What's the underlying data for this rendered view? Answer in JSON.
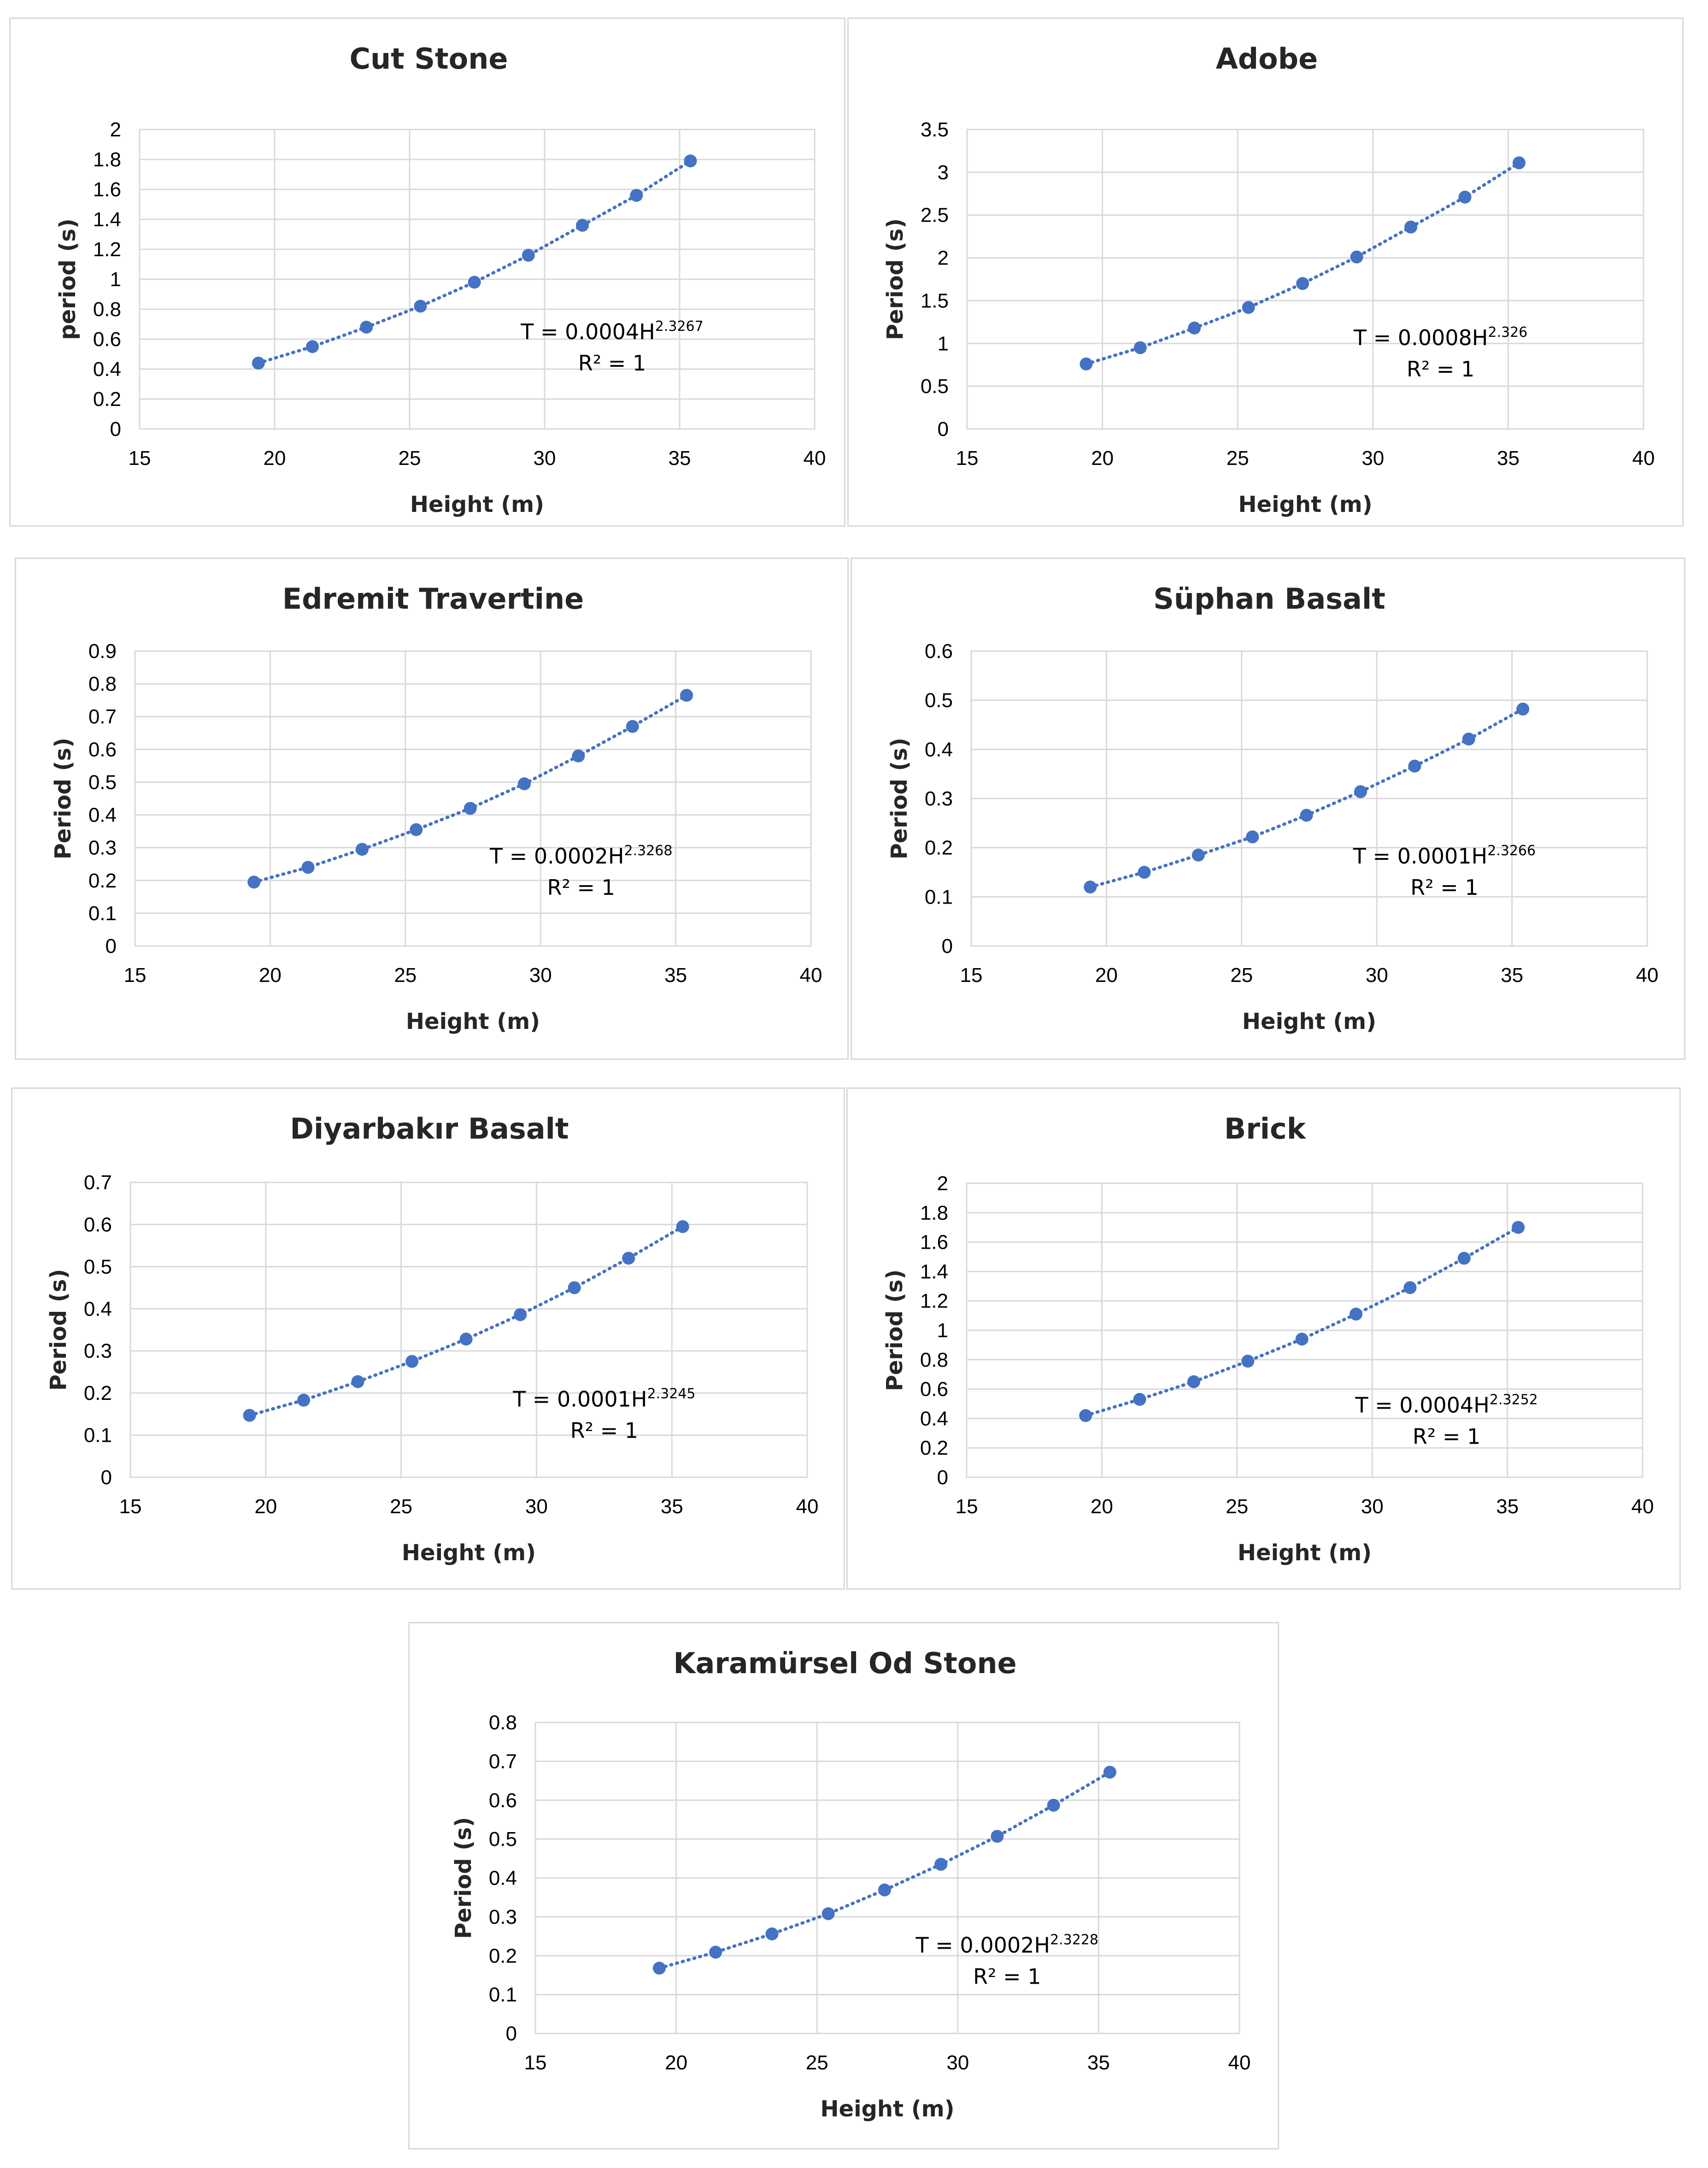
{
  "chart_data": [
    {
      "type": "scatter",
      "title": "Cut Stone",
      "xlabel": "Height (m)",
      "ylabel": "period (s)",
      "xlim": [
        15,
        40
      ],
      "xticks": [
        "15",
        "20",
        "25",
        "30",
        "35",
        "40"
      ],
      "ylim": [
        0,
        2
      ],
      "yticks": [
        "0",
        "0.2",
        "0.4",
        "0.6",
        "0.8",
        "1",
        "1.2",
        "1.4",
        "1.6",
        "1.8",
        "2"
      ],
      "trendline": "power, dotted",
      "series": [
        {
          "name": "period",
          "color": "#4472c4",
          "x": [
            19.4,
            21.4,
            23.4,
            25.4,
            27.4,
            29.4,
            31.4,
            33.4,
            35.4
          ],
          "y": [
            0.44,
            0.55,
            0.68,
            0.82,
            0.98,
            1.16,
            1.36,
            1.56,
            1.79
          ]
        }
      ],
      "equation": {
        "prefix": "T = 0.0004H",
        "exponent": "2.3267",
        "r2": "R² = 1"
      }
    },
    {
      "type": "scatter",
      "title": "Adobe",
      "xlabel": "Height (m)",
      "ylabel": "Period (s)",
      "xlim": [
        15,
        40
      ],
      "xticks": [
        "15",
        "20",
        "25",
        "30",
        "35",
        "40"
      ],
      "ylim": [
        0,
        3.5
      ],
      "yticks": [
        "0",
        "0.5",
        "1",
        "1.5",
        "2",
        "2.5",
        "3",
        "3.5"
      ],
      "trendline": "power, dotted",
      "series": [
        {
          "name": "period",
          "color": "#4472c4",
          "x": [
            19.4,
            21.4,
            23.4,
            25.4,
            27.4,
            29.4,
            31.4,
            33.4,
            35.4
          ],
          "y": [
            0.76,
            0.95,
            1.18,
            1.42,
            1.7,
            2.01,
            2.36,
            2.71,
            3.11
          ]
        }
      ],
      "equation": {
        "prefix": "T = 0.0008H",
        "exponent": "2.326",
        "r2": "R² = 1"
      }
    },
    {
      "type": "scatter",
      "title": "Edremit Travertine",
      "xlabel": "Height (m)",
      "ylabel": "Period (s)",
      "xlim": [
        15,
        40
      ],
      "xticks": [
        "15",
        "20",
        "25",
        "30",
        "35",
        "40"
      ],
      "ylim": [
        0,
        0.9
      ],
      "yticks": [
        "0",
        "0.1",
        "0.2",
        "0.3",
        "0.4",
        "0.5",
        "0.6",
        "0.7",
        "0.8",
        "0.9"
      ],
      "trendline": "power, dotted",
      "series": [
        {
          "name": "period",
          "color": "#4472c4",
          "x": [
            19.4,
            21.4,
            23.4,
            25.4,
            27.4,
            29.4,
            31.4,
            33.4,
            35.4
          ],
          "y": [
            0.195,
            0.24,
            0.295,
            0.355,
            0.42,
            0.495,
            0.58,
            0.67,
            0.765
          ]
        }
      ],
      "equation": {
        "prefix": "T = 0.0002H",
        "exponent": "2.3268",
        "r2": "R² = 1"
      }
    },
    {
      "type": "scatter",
      "title": "Süphan Basalt",
      "xlabel": "Height (m)",
      "ylabel": "Period (s)",
      "xlim": [
        15,
        40
      ],
      "xticks": [
        "15",
        "20",
        "25",
        "30",
        "35",
        "40"
      ],
      "ylim": [
        0,
        0.6
      ],
      "yticks": [
        "0",
        "0.1",
        "0.2",
        "0.3",
        "0.4",
        "0.5",
        "0.6"
      ],
      "trendline": "power, dotted",
      "series": [
        {
          "name": "period",
          "color": "#4472c4",
          "x": [
            19.4,
            21.4,
            23.4,
            25.4,
            27.4,
            29.4,
            31.4,
            33.4,
            35.4
          ],
          "y": [
            0.12,
            0.15,
            0.185,
            0.222,
            0.266,
            0.314,
            0.366,
            0.421,
            0.482
          ]
        }
      ],
      "equation": {
        "prefix": "T = 0.0001H",
        "exponent": "2.3266",
        "r2": "R² = 1"
      }
    },
    {
      "type": "scatter",
      "title": "Diyarbakır Basalt",
      "xlabel": "Height (m)",
      "ylabel": "Period (s)",
      "xlim": [
        15,
        40
      ],
      "xticks": [
        "15",
        "20",
        "25",
        "30",
        "35",
        "40"
      ],
      "ylim": [
        0,
        0.7
      ],
      "yticks": [
        "0",
        "0.1",
        "0.2",
        "0.3",
        "0.4",
        "0.5",
        "0.6",
        "0.7"
      ],
      "trendline": "power, dotted",
      "series": [
        {
          "name": "period",
          "color": "#4472c4",
          "x": [
            19.4,
            21.4,
            23.4,
            25.4,
            27.4,
            29.4,
            31.4,
            33.4,
            35.4
          ],
          "y": [
            0.147,
            0.183,
            0.227,
            0.275,
            0.328,
            0.386,
            0.45,
            0.52,
            0.595
          ]
        }
      ],
      "equation": {
        "prefix": "T = 0.0001H",
        "exponent": "2.3245",
        "r2": "R² = 1"
      }
    },
    {
      "type": "scatter",
      "title": "Brick",
      "xlabel": "Height (m)",
      "ylabel": "Period (s)",
      "xlim": [
        15,
        40
      ],
      "xticks": [
        "15",
        "20",
        "25",
        "30",
        "35",
        "40"
      ],
      "ylim": [
        0,
        2
      ],
      "yticks": [
        "0",
        "0.2",
        "0.4",
        "0.6",
        "0.8",
        "1",
        "1.2",
        "1.4",
        "1.6",
        "1.8",
        "2"
      ],
      "trendline": "power, dotted",
      "series": [
        {
          "name": "period",
          "color": "#4472c4",
          "x": [
            19.4,
            21.4,
            23.4,
            25.4,
            27.4,
            29.4,
            31.4,
            33.4,
            35.4
          ],
          "y": [
            0.42,
            0.53,
            0.65,
            0.79,
            0.94,
            1.11,
            1.29,
            1.49,
            1.7
          ]
        }
      ],
      "equation": {
        "prefix": "T = 0.0004H",
        "exponent": "2.3252",
        "r2": "R² = 1"
      }
    },
    {
      "type": "scatter",
      "title": "Karamürsel Od Stone",
      "xlabel": "Height (m)",
      "ylabel": "Period (s)",
      "xlim": [
        15,
        40
      ],
      "xticks": [
        "15",
        "20",
        "25",
        "30",
        "35",
        "40"
      ],
      "ylim": [
        0,
        0.8
      ],
      "yticks": [
        "0",
        "0.1",
        "0.2",
        "0.3",
        "0.4",
        "0.5",
        "0.6",
        "0.7",
        "0.8"
      ],
      "trendline": "power, dotted",
      "series": [
        {
          "name": "period",
          "color": "#4472c4",
          "x": [
            19.4,
            21.4,
            23.4,
            25.4,
            27.4,
            29.4,
            31.4,
            33.4,
            35.4
          ],
          "y": [
            0.168,
            0.209,
            0.256,
            0.308,
            0.369,
            0.435,
            0.507,
            0.587,
            0.672
          ]
        }
      ],
      "equation": {
        "prefix": "T = 0.0002H",
        "exponent": "2.3228",
        "r2": "R² = 1"
      }
    }
  ]
}
